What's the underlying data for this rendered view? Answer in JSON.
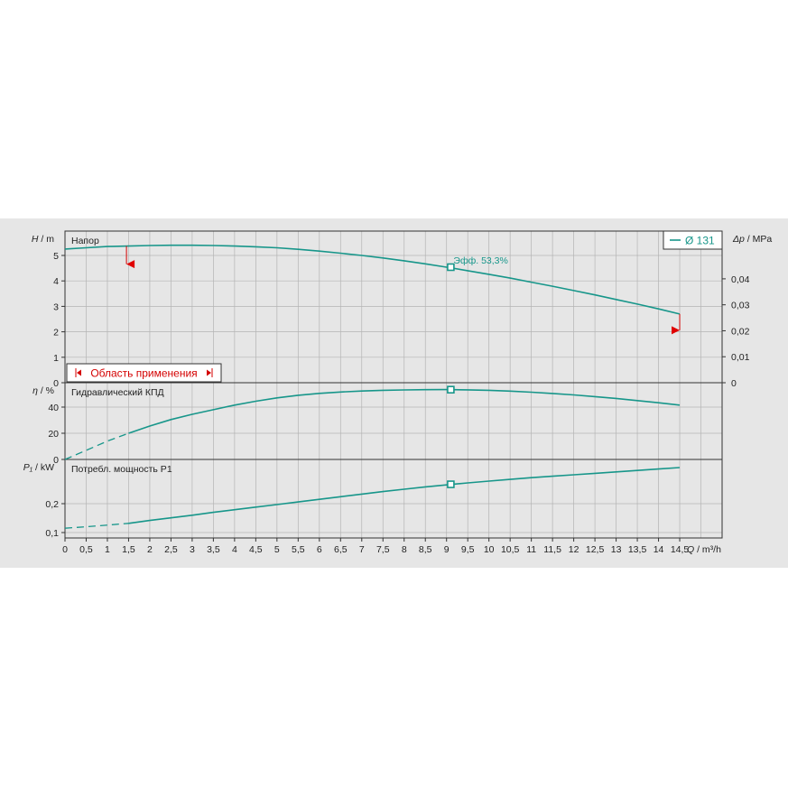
{
  "chart_data": {
    "type": "line",
    "x": {
      "label_var": "Q",
      "label_unit": "m³/h",
      "range": [
        0,
        15.5
      ],
      "ticks": [
        "0",
        "0,5",
        "1",
        "1,5",
        "2",
        "2,5",
        "3",
        "3,5",
        "4",
        "4,5",
        "5",
        "5,5",
        "6",
        "6,5",
        "7",
        "7,5",
        "8",
        "8,5",
        "9",
        "9,5",
        "10",
        "10,5",
        "11",
        "11,5",
        "12",
        "12,5",
        "13",
        "13,5",
        "14",
        "14,5"
      ]
    },
    "legend": {
      "label": "Ø 131",
      "placement": "top-right",
      "color": "#17968a"
    },
    "operating_point_q": 9.1,
    "panels": [
      {
        "id": "head",
        "title": "Напор",
        "y_var": "H",
        "y_unit": "m",
        "y_range": [
          0,
          5.5
        ],
        "y_ticks": [
          "0",
          "1",
          "2",
          "3",
          "4",
          "5"
        ],
        "y2_var": "Δp",
        "y2_unit": "MPa",
        "y2_range": [
          0,
          0.054
        ],
        "y2_ticks": [
          "0",
          "0,01",
          "0,02",
          "0,03",
          "0,04"
        ],
        "series": [
          {
            "dashed": false,
            "points": [
              [
                0,
                5.25
              ],
              [
                0.5,
                5.3
              ],
              [
                1,
                5.35
              ],
              [
                1.5,
                5.37
              ],
              [
                2,
                5.39
              ],
              [
                2.5,
                5.4
              ],
              [
                3,
                5.4
              ],
              [
                3.5,
                5.39
              ],
              [
                4,
                5.37
              ],
              [
                4.5,
                5.34
              ],
              [
                5,
                5.3
              ],
              [
                5.5,
                5.24
              ],
              [
                6,
                5.17
              ],
              [
                6.5,
                5.09
              ],
              [
                7,
                5.0
              ],
              [
                7.5,
                4.9
              ],
              [
                8,
                4.79
              ],
              [
                8.5,
                4.67
              ],
              [
                9,
                4.54
              ],
              [
                9.5,
                4.4
              ],
              [
                10,
                4.26
              ],
              [
                10.5,
                4.11
              ],
              [
                11,
                3.95
              ],
              [
                11.5,
                3.79
              ],
              [
                12,
                3.62
              ],
              [
                12.5,
                3.45
              ],
              [
                13,
                3.27
              ],
              [
                13.5,
                3.09
              ],
              [
                14,
                2.9
              ],
              [
                14.5,
                2.7
              ]
            ]
          }
        ],
        "op_label": "Эфф.  53,3%",
        "op_value": 4.54,
        "range_label": "Область применения",
        "range_marks": {
          "q_min": 1.45,
          "q_max": 14.5
        }
      },
      {
        "id": "efficiency",
        "title": "Гидравлический КПД",
        "y_var": "η",
        "y_unit": "%",
        "y_range": [
          0,
          60
        ],
        "y_ticks": [
          "0",
          "20",
          "40"
        ],
        "series": [
          {
            "dashed": true,
            "points": [
              [
                0,
                0
              ],
              [
                0.5,
                7
              ],
              [
                1,
                14
              ],
              [
                1.5,
                20
              ]
            ]
          },
          {
            "dashed": false,
            "points": [
              [
                1.5,
                20
              ],
              [
                2,
                25.5
              ],
              [
                2.5,
                30.5
              ],
              [
                3,
                34.5
              ],
              [
                3.5,
                38
              ],
              [
                4,
                41.5
              ],
              [
                4.5,
                44.5
              ],
              [
                5,
                47
              ],
              [
                5.5,
                49
              ],
              [
                6,
                50.5
              ],
              [
                6.5,
                51.5
              ],
              [
                7,
                52.3
              ],
              [
                7.5,
                52.8
              ],
              [
                8,
                53.1
              ],
              [
                8.5,
                53.3
              ],
              [
                9,
                53.35
              ],
              [
                9.5,
                53.2
              ],
              [
                10,
                52.8
              ],
              [
                10.5,
                52.2
              ],
              [
                11,
                51.4
              ],
              [
                11.5,
                50.4
              ],
              [
                12,
                49.3
              ],
              [
                12.5,
                48
              ],
              [
                13,
                46.6
              ],
              [
                13.5,
                45
              ],
              [
                14,
                43.3
              ],
              [
                14.5,
                41.5
              ]
            ]
          }
        ],
        "op_value": 53.3
      },
      {
        "id": "power",
        "title": "Потребл. мощность P1",
        "y_var": "P₁",
        "y_unit": "kW",
        "y_range": [
          0.085,
          0.36
        ],
        "y_ticks": [
          "0,1",
          "0,2"
        ],
        "series": [
          {
            "dashed": true,
            "points": [
              [
                0,
                0.115
              ],
              [
                0.5,
                0.12
              ],
              [
                1,
                0.126
              ],
              [
                1.5,
                0.132
              ]
            ]
          },
          {
            "dashed": false,
            "points": [
              [
                1.5,
                0.132
              ],
              [
                2,
                0.142
              ],
              [
                2.5,
                0.151
              ],
              [
                3,
                0.16
              ],
              [
                3.5,
                0.17
              ],
              [
                4,
                0.179
              ],
              [
                4.5,
                0.188
              ],
              [
                5,
                0.197
              ],
              [
                5.5,
                0.206
              ],
              [
                6,
                0.215
              ],
              [
                6.5,
                0.224
              ],
              [
                7,
                0.233
              ],
              [
                7.5,
                0.242
              ],
              [
                8,
                0.25
              ],
              [
                8.5,
                0.258
              ],
              [
                9,
                0.265
              ],
              [
                9.5,
                0.272
              ],
              [
                10,
                0.278
              ],
              [
                10.5,
                0.284
              ],
              [
                11,
                0.29
              ],
              [
                11.5,
                0.295
              ],
              [
                12,
                0.3
              ],
              [
                12.5,
                0.305
              ],
              [
                13,
                0.31
              ],
              [
                13.5,
                0.315
              ],
              [
                14,
                0.32
              ],
              [
                14.5,
                0.325
              ]
            ]
          }
        ],
        "op_value": 0.267
      }
    ]
  }
}
